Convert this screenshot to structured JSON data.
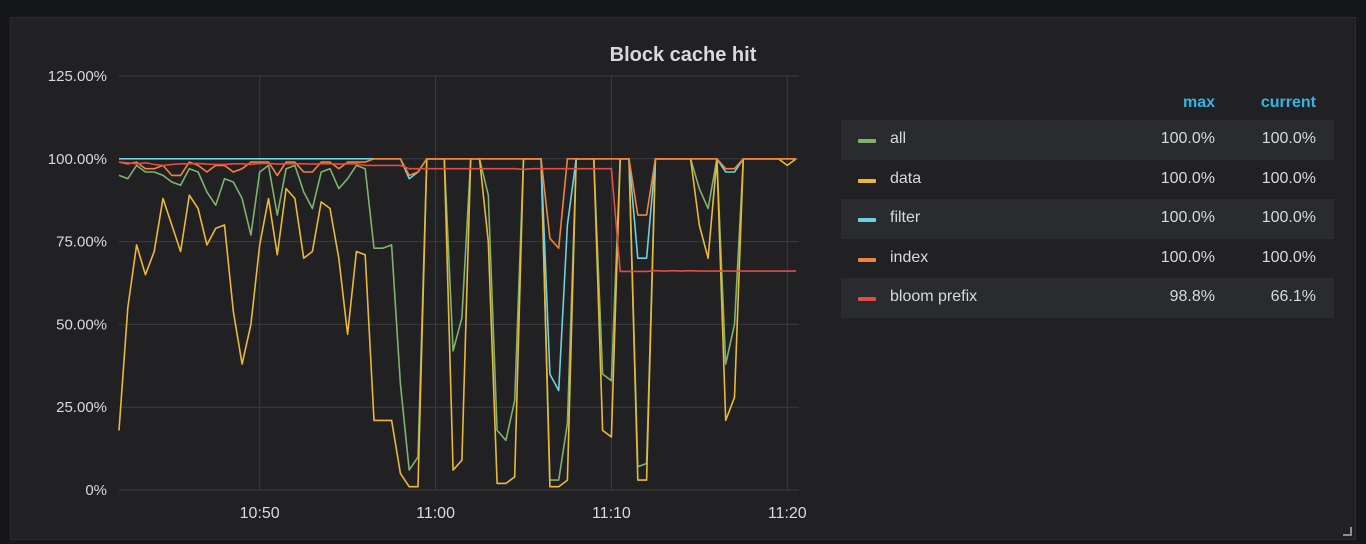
{
  "panel": {
    "title": "Block cache hit"
  },
  "legend": {
    "headers": {
      "max": "max",
      "current": "current"
    },
    "rows": [
      {
        "name": "all",
        "max": "100.0%",
        "current": "100.0%",
        "color": "#7eb26d"
      },
      {
        "name": "data",
        "max": "100.0%",
        "current": "100.0%",
        "color": "#eab839"
      },
      {
        "name": "filter",
        "max": "100.0%",
        "current": "100.0%",
        "color": "#6ed0e0"
      },
      {
        "name": "index",
        "max": "100.0%",
        "current": "100.0%",
        "color": "#ef843c"
      },
      {
        "name": "bloom prefix",
        "max": "98.8%",
        "current": "66.1%",
        "color": "#e24d42"
      }
    ]
  },
  "chart_data": {
    "type": "line",
    "title": "Block cache hit",
    "x_range": [
      "10:42",
      "11:20"
    ],
    "ylim": [
      0,
      125
    ],
    "y_ticks": [
      "0%",
      "25.00%",
      "50.00%",
      "75.00%",
      "100.00%",
      "125.00%"
    ],
    "x_ticks": [
      "10:50",
      "11:00",
      "11:10",
      "11:20"
    ],
    "grid": true,
    "legend_position": "right",
    "x": [
      "10:42:00",
      "10:42:30",
      "10:43:00",
      "10:43:30",
      "10:44:00",
      "10:44:30",
      "10:45:00",
      "10:45:30",
      "10:46:00",
      "10:46:30",
      "10:47:00",
      "10:47:30",
      "10:48:00",
      "10:48:30",
      "10:49:00",
      "10:49:30",
      "10:50:00",
      "10:50:30",
      "10:51:00",
      "10:51:30",
      "10:52:00",
      "10:52:30",
      "10:53:00",
      "10:53:30",
      "10:54:00",
      "10:54:30",
      "10:55:00",
      "10:55:30",
      "10:56:00",
      "10:56:30",
      "10:57:00",
      "10:57:30",
      "10:58:00",
      "10:58:30",
      "10:59:00",
      "10:59:30",
      "11:00:00",
      "11:00:30",
      "11:01:00",
      "11:01:30",
      "11:02:00",
      "11:02:30",
      "11:03:00",
      "11:03:30",
      "11:04:00",
      "11:04:30",
      "11:05:00",
      "11:05:30",
      "11:06:00",
      "11:06:30",
      "11:07:00",
      "11:07:30",
      "11:08:00",
      "11:08:30",
      "11:09:00",
      "11:09:30",
      "11:10:00",
      "11:10:30",
      "11:11:00",
      "11:11:30",
      "11:12:00",
      "11:12:30",
      "11:13:00",
      "11:13:30",
      "11:14:00",
      "11:14:30",
      "11:15:00",
      "11:15:30",
      "11:16:00",
      "11:16:30",
      "11:17:00",
      "11:17:30",
      "11:18:00",
      "11:18:30",
      "11:19:00",
      "11:19:30",
      "11:20:00",
      "11:20:30"
    ],
    "series": [
      {
        "name": "all",
        "color": "#7eb26d",
        "values": [
          95,
          94,
          98,
          96,
          96,
          95,
          93,
          92,
          97,
          96,
          90,
          86,
          94,
          93,
          88,
          77,
          96,
          98,
          83,
          97,
          98,
          90,
          85,
          96,
          97,
          91,
          94,
          98,
          97,
          73,
          73,
          74,
          32,
          6,
          10,
          100,
          100,
          100,
          42,
          52,
          100,
          100,
          89,
          18,
          15,
          27,
          100,
          100,
          100,
          3,
          3,
          20,
          100,
          100,
          100,
          35,
          33,
          100,
          100,
          7,
          8,
          100,
          100,
          100,
          100,
          100,
          91,
          85,
          100,
          38,
          50,
          100,
          100,
          100,
          100,
          100,
          100,
          100
        ]
      },
      {
        "name": "data",
        "color": "#eab839",
        "values": [
          18,
          55,
          74,
          65,
          72,
          88,
          80,
          72,
          89,
          85,
          74,
          79,
          80,
          54,
          38,
          50,
          74,
          88,
          71,
          91,
          88,
          70,
          72,
          87,
          85,
          70,
          47,
          72,
          71,
          21,
          21,
          21,
          5,
          1,
          1,
          100,
          100,
          100,
          6,
          9,
          100,
          100,
          75,
          2,
          2,
          4,
          100,
          100,
          100,
          1,
          1,
          3,
          100,
          100,
          100,
          18,
          16,
          100,
          100,
          3,
          3,
          100,
          100,
          100,
          100,
          100,
          80,
          70,
          100,
          21,
          28,
          100,
          100,
          100,
          100,
          100,
          98,
          100
        ]
      },
      {
        "name": "filter",
        "color": "#6ed0e0",
        "values": [
          100,
          100,
          100,
          100,
          100,
          100,
          100,
          100,
          100,
          100,
          100,
          100,
          100,
          100,
          100,
          100,
          100,
          100,
          100,
          100,
          100,
          100,
          100,
          100,
          100,
          100,
          100,
          100,
          100,
          100,
          100,
          100,
          100,
          94,
          96,
          100,
          100,
          100,
          100,
          100,
          100,
          100,
          100,
          100,
          100,
          100,
          100,
          100,
          100,
          35,
          30,
          80,
          100,
          100,
          100,
          100,
          100,
          100,
          100,
          70,
          70,
          100,
          100,
          100,
          100,
          100,
          100,
          100,
          100,
          96,
          96,
          100,
          100,
          100,
          100,
          100,
          100,
          100
        ]
      },
      {
        "name": "index",
        "color": "#ef843c",
        "values": [
          99,
          98.5,
          99,
          97,
          97,
          98,
          95,
          95,
          99,
          98,
          96,
          98,
          98,
          96,
          97,
          99,
          99,
          99,
          95,
          99,
          99,
          96,
          96,
          99,
          99,
          97,
          99,
          99,
          99,
          100,
          100,
          100,
          100,
          95,
          96,
          100,
          100,
          100,
          100,
          100,
          100,
          100,
          100,
          100,
          100,
          100,
          100,
          100,
          100,
          76,
          73,
          100,
          100,
          100,
          100,
          100,
          100,
          100,
          100,
          83,
          83,
          100,
          100,
          100,
          100,
          100,
          100,
          100,
          100,
          97,
          97,
          100,
          100,
          100,
          100,
          100,
          100,
          100
        ]
      },
      {
        "name": "bloom prefix",
        "color": "#e24d42",
        "values": [
          99,
          98.8,
          98.5,
          98.8,
          98.3,
          98,
          98.3,
          98.5,
          98.5,
          98.6,
          98.4,
          98.3,
          98.3,
          98.5,
          98.5,
          98.3,
          98.6,
          98.6,
          98.4,
          98.5,
          98.5,
          98.5,
          98.4,
          98.5,
          98.5,
          98.4,
          98.5,
          98.5,
          98,
          98,
          98,
          98,
          98,
          97,
          97,
          97,
          97,
          97,
          97,
          97,
          97,
          97,
          97,
          97,
          97,
          97,
          96.8,
          97,
          97,
          97,
          97,
          97,
          97,
          97,
          97,
          97,
          97,
          66,
          66,
          66,
          66,
          66.2,
          66.1,
          66.2,
          66.1,
          66.2,
          66.1,
          66.1,
          66.1,
          66.1,
          66.1,
          66.1,
          66.1,
          66.1,
          66.1,
          66.1,
          66.1,
          66.1
        ]
      }
    ]
  }
}
